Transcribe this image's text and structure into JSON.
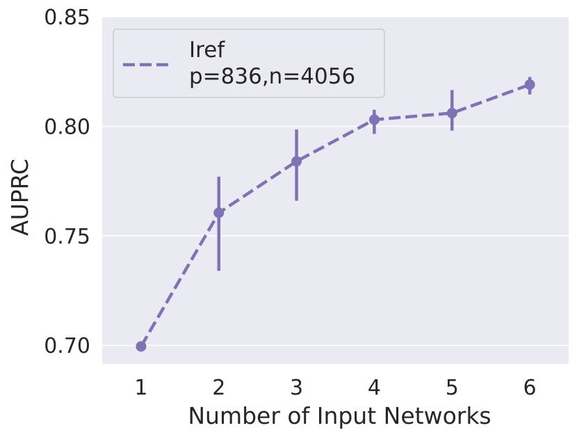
{
  "chart_data": {
    "type": "line",
    "title": "",
    "xlabel": "Number of Input Networks",
    "ylabel": "AUPRC",
    "x": [
      1,
      2,
      3,
      4,
      5,
      6
    ],
    "xticks": [
      "1",
      "2",
      "3",
      "4",
      "5",
      "6"
    ],
    "yticks": [
      "0.70",
      "0.75",
      "0.80",
      "0.85"
    ],
    "ylim": [
      0.6915,
      0.85
    ],
    "grid": true,
    "legend_placement": "top-left",
    "series": [
      {
        "name_line1": "Iref",
        "name_line2": "p=836,n=4056",
        "color": "#8172b3",
        "linestyle": "dashed",
        "values": [
          0.6995,
          0.7605,
          0.784,
          0.803,
          0.806,
          0.819
        ],
        "err_low": [
          0.6975,
          0.734,
          0.766,
          0.7965,
          0.798,
          0.8145
        ],
        "err_high": [
          0.7015,
          0.777,
          0.7985,
          0.8075,
          0.8165,
          0.8225
        ]
      }
    ]
  },
  "colors": {
    "plot_background": "#eaeaf2",
    "grid": "#ffffff",
    "text": "#262626"
  }
}
